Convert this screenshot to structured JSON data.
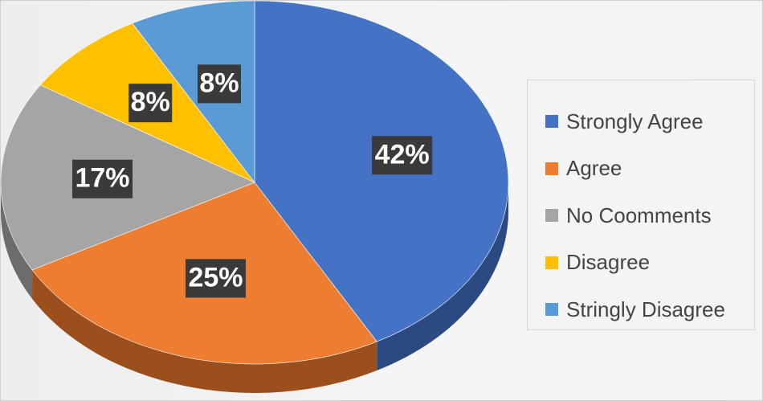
{
  "chart_data": {
    "type": "pie",
    "title": "",
    "categories": [
      "Strongly Agree",
      "Agree",
      "No Coomments",
      "Disagree",
      "Stringly Disagree"
    ],
    "values": [
      42,
      25,
      17,
      8,
      8
    ],
    "value_labels": [
      "42%",
      "25%",
      "17%",
      "8%",
      "8%"
    ],
    "colors": [
      "#4472c4",
      "#ed7d31",
      "#a5a5a5",
      "#ffc000",
      "#5b9bd5"
    ],
    "side_colors": [
      "#2b4a82",
      "#9a4f1c",
      "#6c6c6c",
      "#a67d00",
      "#3a6a95"
    ],
    "style": "3d",
    "legend_position": "right"
  }
}
